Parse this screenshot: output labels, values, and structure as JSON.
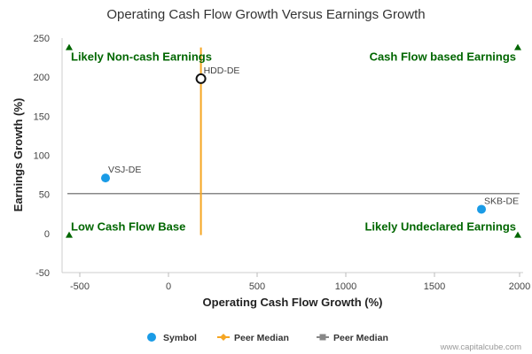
{
  "chart_data": {
    "type": "scatter",
    "title": "Operating Cash Flow Growth Versus Earnings Growth",
    "xlabel": "Operating Cash Flow Growth (%)",
    "ylabel": "Earnings Growth (%)",
    "xlim": [
      -600,
      2000
    ],
    "ylim": [
      -50,
      250
    ],
    "xticks": [
      -500,
      0,
      500,
      1000,
      1500,
      2000
    ],
    "yticks": [
      -50,
      0,
      50,
      100,
      150,
      200,
      250
    ],
    "grid": false,
    "points": [
      {
        "label": "VSJ-DE",
        "x": -355,
        "y": 71,
        "style": "symbol"
      },
      {
        "label": "SKB-DE",
        "x": 1765,
        "y": 31,
        "style": "symbol"
      },
      {
        "label": "HDD-DE",
        "x": 183,
        "y": 198,
        "style": "highlight"
      }
    ],
    "peer_median_x": 183,
    "peer_median_y": 51,
    "quadrant_labels": [
      {
        "text": "Likely Non-cash Earnings",
        "position": "top-left"
      },
      {
        "text": "Cash Flow based Earnings",
        "position": "top-right"
      },
      {
        "text": "Low Cash Flow Base",
        "position": "bottom-left"
      },
      {
        "text": "Likely Undeclared Earnings",
        "position": "bottom-right"
      }
    ],
    "legend": {
      "placement": "bottom-center",
      "entries": [
        {
          "name": "Symbol",
          "color": "#1a9be6",
          "shape": "circle"
        },
        {
          "name": "Peer Median",
          "color": "#f5a623",
          "shape": "diamond-line"
        },
        {
          "name": "Peer Median",
          "color": "#888888",
          "shape": "square-line"
        }
      ]
    },
    "colors": {
      "symbol": "#1a9be6",
      "highlight_stroke": "#111111",
      "median_vertical": "#f5a623",
      "median_horizontal": "#888888",
      "quadrant_text": "#006600",
      "marker_triangle": "#006600"
    }
  },
  "credit": "www.capitalcube.com"
}
